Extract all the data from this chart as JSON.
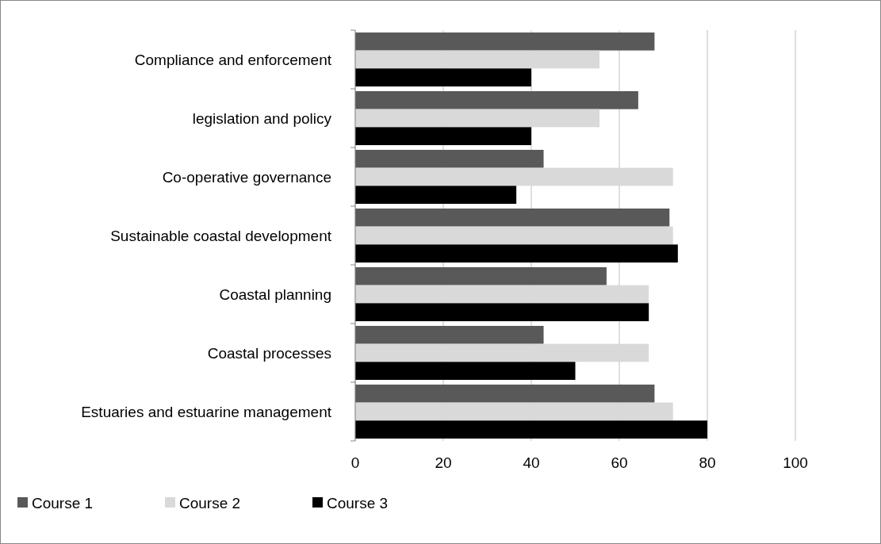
{
  "chart_data": {
    "type": "bar",
    "orientation": "horizontal",
    "categories": [
      "Compliance and enforcement",
      "legislation and policy",
      "Co-operative governance",
      "Sustainable coastal development",
      "Coastal planning",
      "Coastal processes",
      "Estuaries and estuarine management"
    ],
    "series": [
      {
        "name": "Course 1",
        "color": "#595959",
        "values": [
          68,
          64.3,
          42.8,
          71.4,
          57.1,
          42.8,
          68
        ]
      },
      {
        "name": "Course 2",
        "color": "#d9d9d9",
        "values": [
          55.5,
          55.5,
          72.2,
          72.2,
          66.7,
          66.7,
          72.2
        ]
      },
      {
        "name": "Course 3",
        "color": "#000000",
        "values": [
          40,
          40,
          36.6,
          73.3,
          66.7,
          50,
          80
        ]
      }
    ],
    "xlim": [
      0,
      100
    ],
    "xticks": [
      0,
      20,
      40,
      60,
      80,
      100
    ],
    "grid": "x",
    "legend": "bottom"
  }
}
